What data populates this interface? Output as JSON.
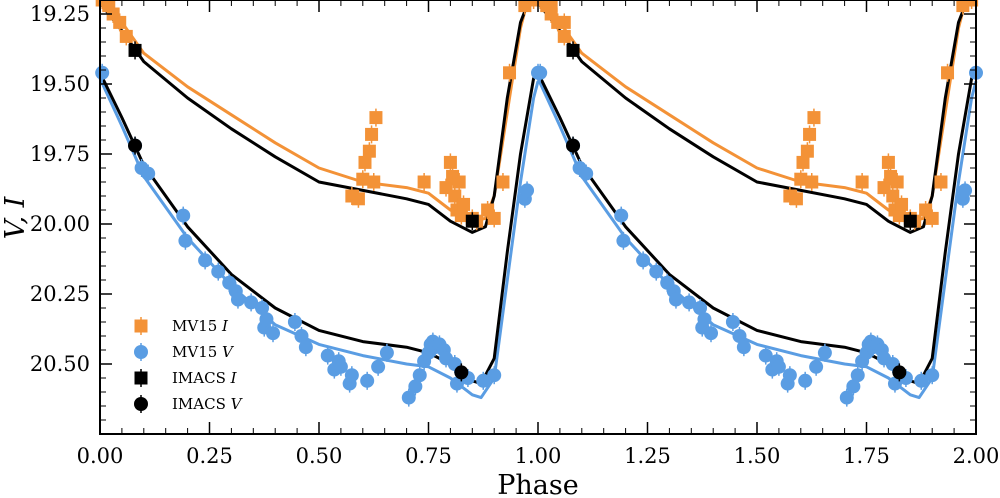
{
  "chart_data": {
    "type": "scatter",
    "title": "",
    "xlabel": "Phase",
    "ylabel": "V, I",
    "xlim": [
      0.0,
      2.0
    ],
    "ylim": [
      19.2,
      20.75
    ],
    "y_inverted": true,
    "x_ticks": [
      0.0,
      0.25,
      0.5,
      0.75,
      1.0,
      1.25,
      1.5,
      1.75,
      2.0
    ],
    "x_tick_labels": [
      "0.00",
      "0.25",
      "0.50",
      "0.75",
      "1.00",
      "1.25",
      "1.50",
      "1.75",
      "2.00"
    ],
    "y_ticks": [
      19.25,
      19.5,
      19.75,
      20.0,
      20.25,
      20.5
    ],
    "y_tick_labels": [
      "19.25",
      "19.50",
      "19.75",
      "20.00",
      "20.25",
      "20.50"
    ],
    "legend_position": "lower-left",
    "colors": {
      "orange": "#f39237",
      "blue": "#5a9de3",
      "black": "#000000"
    },
    "legend": [
      {
        "label": "MV15",
        "band": "I",
        "marker": "square",
        "color": "#f39237"
      },
      {
        "label": "MV15",
        "band": "V",
        "marker": "circle",
        "color": "#5a9de3"
      },
      {
        "label": "IMACS",
        "band": "I",
        "marker": "square",
        "color": "#000000"
      },
      {
        "label": "IMACS",
        "band": "V",
        "marker": "circle",
        "color": "#000000"
      }
    ],
    "series": [
      {
        "name": "MV15 I",
        "kind": "points",
        "marker": "square",
        "color": "#f39237",
        "points": [
          [
            0.005,
            19.2
          ],
          [
            0.02,
            19.22
          ],
          [
            0.03,
            19.25
          ],
          [
            0.045,
            19.28
          ],
          [
            0.06,
            19.33
          ],
          [
            0.575,
            19.9
          ],
          [
            0.59,
            19.91
          ],
          [
            0.6,
            19.84
          ],
          [
            0.605,
            19.78
          ],
          [
            0.615,
            19.74
          ],
          [
            0.62,
            19.68
          ],
          [
            0.625,
            19.85
          ],
          [
            0.63,
            19.62
          ],
          [
            0.74,
            19.85
          ],
          [
            0.79,
            19.87
          ],
          [
            0.8,
            19.78
          ],
          [
            0.805,
            19.83
          ],
          [
            0.81,
            19.9
          ],
          [
            0.815,
            19.95
          ],
          [
            0.82,
            19.85
          ],
          [
            0.825,
            19.97
          ],
          [
            0.83,
            19.93
          ],
          [
            0.85,
            19.98
          ],
          [
            0.86,
            19.99
          ],
          [
            0.885,
            19.95
          ],
          [
            0.9,
            19.98
          ],
          [
            0.92,
            19.85
          ],
          [
            0.935,
            19.46
          ],
          [
            0.97,
            19.22
          ],
          [
            0.99,
            19.2
          ],
          [
            1.03,
            19.22
          ],
          [
            1.06,
            19.28
          ]
        ]
      },
      {
        "name": "MV15 V",
        "kind": "points",
        "marker": "circle",
        "color": "#5a9de3",
        "points": [
          [
            0.005,
            19.46
          ],
          [
            0.08,
            19.72
          ],
          [
            0.095,
            19.8
          ],
          [
            0.11,
            19.82
          ],
          [
            0.19,
            19.97
          ],
          [
            0.195,
            20.06
          ],
          [
            0.24,
            20.13
          ],
          [
            0.27,
            20.17
          ],
          [
            0.295,
            20.21
          ],
          [
            0.31,
            20.24
          ],
          [
            0.315,
            20.27
          ],
          [
            0.345,
            20.28
          ],
          [
            0.37,
            20.3
          ],
          [
            0.375,
            20.37
          ],
          [
            0.38,
            20.34
          ],
          [
            0.395,
            20.39
          ],
          [
            0.445,
            20.35
          ],
          [
            0.46,
            20.4
          ],
          [
            0.47,
            20.44
          ],
          [
            0.52,
            20.47
          ],
          [
            0.535,
            20.52
          ],
          [
            0.545,
            20.49
          ],
          [
            0.55,
            20.51
          ],
          [
            0.57,
            20.57
          ],
          [
            0.575,
            20.54
          ],
          [
            0.61,
            20.56
          ],
          [
            0.635,
            20.51
          ],
          [
            0.655,
            20.46
          ],
          [
            0.705,
            20.62
          ],
          [
            0.72,
            20.58
          ],
          [
            0.73,
            20.54
          ],
          [
            0.74,
            20.49
          ],
          [
            0.75,
            20.46
          ],
          [
            0.755,
            20.43
          ],
          [
            0.76,
            20.42
          ],
          [
            0.765,
            20.44
          ],
          [
            0.775,
            20.43
          ],
          [
            0.785,
            20.45
          ],
          [
            0.79,
            20.48
          ],
          [
            0.81,
            20.5
          ],
          [
            0.815,
            20.57
          ],
          [
            0.84,
            20.55
          ],
          [
            0.875,
            20.56
          ],
          [
            0.9,
            20.54
          ],
          [
            0.97,
            19.91
          ],
          [
            0.975,
            19.88
          ],
          [
            1.0,
            19.46
          ]
        ]
      },
      {
        "name": "IMACS I",
        "kind": "points",
        "marker": "square",
        "color": "#000000",
        "points": [
          [
            0.08,
            19.38
          ],
          [
            0.85,
            19.99
          ]
        ]
      },
      {
        "name": "IMACS V",
        "kind": "points",
        "marker": "circle",
        "color": "#000000",
        "points": [
          [
            0.08,
            19.72
          ],
          [
            0.825,
            20.53
          ]
        ]
      },
      {
        "name": "I model (MV15)",
        "kind": "line",
        "color": "#f39237",
        "points": [
          [
            0.0,
            19.18
          ],
          [
            0.05,
            19.28
          ],
          [
            0.1,
            19.39
          ],
          [
            0.2,
            19.51
          ],
          [
            0.3,
            19.61
          ],
          [
            0.4,
            19.71
          ],
          [
            0.5,
            19.8
          ],
          [
            0.6,
            19.85
          ],
          [
            0.7,
            19.87
          ],
          [
            0.75,
            19.89
          ],
          [
            0.8,
            19.95
          ],
          [
            0.85,
            19.99
          ],
          [
            0.88,
            19.98
          ],
          [
            0.9,
            19.9
          ],
          [
            0.93,
            19.6
          ],
          [
            0.96,
            19.3
          ],
          [
            0.98,
            19.18
          ],
          [
            1.0,
            19.17
          ]
        ]
      },
      {
        "name": "I model (IMACS)",
        "kind": "line",
        "color": "#000000",
        "points": [
          [
            0.0,
            19.21
          ],
          [
            0.05,
            19.31
          ],
          [
            0.1,
            19.42
          ],
          [
            0.2,
            19.55
          ],
          [
            0.3,
            19.66
          ],
          [
            0.4,
            19.76
          ],
          [
            0.5,
            19.85
          ],
          [
            0.6,
            19.88
          ],
          [
            0.7,
            19.91
          ],
          [
            0.75,
            19.93
          ],
          [
            0.8,
            19.99
          ],
          [
            0.85,
            20.03
          ],
          [
            0.88,
            20.01
          ],
          [
            0.9,
            19.9
          ],
          [
            0.93,
            19.55
          ],
          [
            0.96,
            19.28
          ],
          [
            0.98,
            19.2
          ],
          [
            1.0,
            19.21
          ]
        ]
      },
      {
        "name": "V model (MV15)",
        "kind": "line",
        "color": "#5a9de3",
        "points": [
          [
            0.0,
            19.48
          ],
          [
            0.05,
            19.65
          ],
          [
            0.1,
            19.83
          ],
          [
            0.2,
            20.05
          ],
          [
            0.3,
            20.22
          ],
          [
            0.4,
            20.36
          ],
          [
            0.5,
            20.43
          ],
          [
            0.6,
            20.47
          ],
          [
            0.7,
            20.5
          ],
          [
            0.75,
            20.51
          ],
          [
            0.8,
            20.55
          ],
          [
            0.85,
            20.61
          ],
          [
            0.87,
            20.62
          ],
          [
            0.9,
            20.55
          ],
          [
            0.93,
            20.2
          ],
          [
            0.96,
            19.85
          ],
          [
            0.99,
            19.55
          ],
          [
            1.0,
            19.49
          ]
        ]
      },
      {
        "name": "V model (IMACS)",
        "kind": "line",
        "color": "#000000",
        "points": [
          [
            0.0,
            19.46
          ],
          [
            0.05,
            19.62
          ],
          [
            0.1,
            19.79
          ],
          [
            0.2,
            20.01
          ],
          [
            0.3,
            20.18
          ],
          [
            0.4,
            20.3
          ],
          [
            0.5,
            20.38
          ],
          [
            0.6,
            20.42
          ],
          [
            0.7,
            20.44
          ],
          [
            0.75,
            20.46
          ],
          [
            0.8,
            20.5
          ],
          [
            0.85,
            20.56
          ],
          [
            0.87,
            20.57
          ],
          [
            0.9,
            20.48
          ],
          [
            0.93,
            20.1
          ],
          [
            0.96,
            19.75
          ],
          [
            0.99,
            19.48
          ],
          [
            1.0,
            19.46
          ]
        ]
      }
    ]
  }
}
